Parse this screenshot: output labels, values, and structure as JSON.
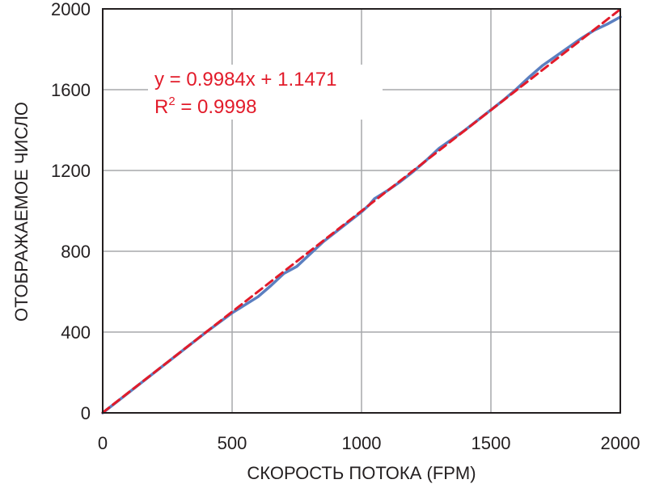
{
  "chart_data": {
    "type": "line",
    "xlabel": "СКОРОСТЬ ПОТОКА (FPM)",
    "ylabel": "ОТОБРАЖАЕМОЕ ЧИСЛО",
    "xlim": [
      0,
      2000
    ],
    "ylim": [
      0,
      2000
    ],
    "xticks": [
      0,
      500,
      1000,
      1500,
      2000
    ],
    "yticks": [
      0,
      400,
      800,
      1200,
      1600,
      2000
    ],
    "xtick_labels": [
      "0",
      "500",
      "1000",
      "1500",
      "2000"
    ],
    "ytick_labels": [
      "0",
      "400",
      "800",
      "1200",
      "1600",
      "2000"
    ],
    "grid": true,
    "series": [
      {
        "style": "solid",
        "color": "#5b7fc0",
        "points": [
          [
            0,
            0
          ],
          [
            100,
            100
          ],
          [
            200,
            200
          ],
          [
            300,
            300
          ],
          [
            400,
            400
          ],
          [
            500,
            495
          ],
          [
            550,
            535
          ],
          [
            600,
            575
          ],
          [
            650,
            630
          ],
          [
            700,
            690
          ],
          [
            750,
            725
          ],
          [
            800,
            785
          ],
          [
            850,
            845
          ],
          [
            900,
            895
          ],
          [
            950,
            945
          ],
          [
            1000,
            995
          ],
          [
            1030,
            1030
          ],
          [
            1050,
            1060
          ],
          [
            1100,
            1100
          ],
          [
            1150,
            1145
          ],
          [
            1200,
            1195
          ],
          [
            1250,
            1250
          ],
          [
            1300,
            1310
          ],
          [
            1350,
            1355
          ],
          [
            1400,
            1400
          ],
          [
            1450,
            1450
          ],
          [
            1500,
            1500
          ],
          [
            1550,
            1550
          ],
          [
            1600,
            1605
          ],
          [
            1650,
            1665
          ],
          [
            1700,
            1720
          ],
          [
            1750,
            1765
          ],
          [
            1800,
            1810
          ],
          [
            1850,
            1855
          ],
          [
            1900,
            1895
          ],
          [
            1950,
            1925
          ],
          [
            2000,
            1960
          ]
        ]
      },
      {
        "style": "dashed",
        "color": "#e21b2a",
        "points": [
          [
            0,
            1.1471
          ],
          [
            2000,
            1997.9471
          ]
        ]
      }
    ],
    "annotations": {
      "equation": "y = 0.9984x + 1.1471",
      "r2_prefix": "R",
      "r2_exponent": "2",
      "r2_rest": " = 0.9998"
    }
  }
}
